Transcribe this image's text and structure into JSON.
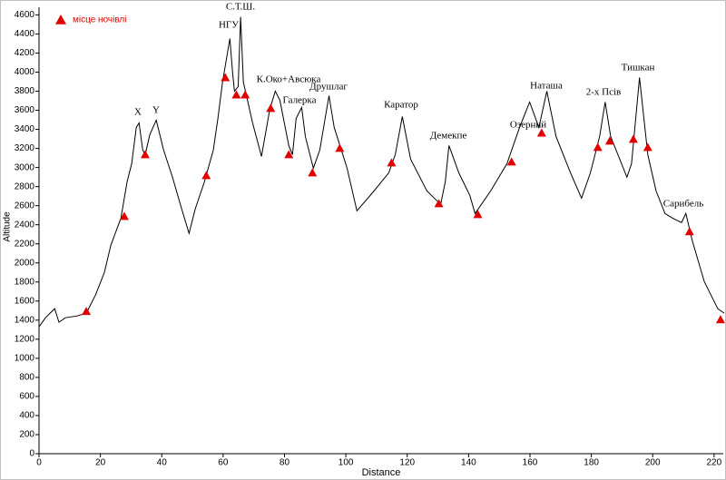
{
  "chart_data": {
    "type": "line",
    "xlabel": "Distance",
    "ylabel": "Altitude",
    "xlim": [
      0,
      223
    ],
    "xticks": [
      0,
      20,
      40,
      60,
      80,
      100,
      120,
      140,
      160,
      180,
      200,
      220
    ],
    "ylim": [
      0,
      4680
    ],
    "yticks": [
      0,
      200,
      400,
      600,
      800,
      1000,
      1200,
      1400,
      1600,
      1800,
      2000,
      2200,
      2400,
      2600,
      2800,
      3000,
      3200,
      3400,
      3600,
      3800,
      4000,
      4200,
      4400,
      4600
    ],
    "legend": "top-left",
    "series": [
      {
        "color": "#000000",
        "x": [
          0,
          2.1,
          3.6,
          5.1,
          6.5,
          8.6,
          12.4,
          15.4,
          18.4,
          21.3,
          23.4,
          26.7,
          28.7,
          30.2,
          31.7,
          32.6,
          33.8,
          34.6,
          36.1,
          38.2,
          40.6,
          43.5,
          46.5,
          48.9,
          50.9,
          53.9,
          56.8,
          58.3,
          59.8,
          61.3,
          62.2,
          63.1,
          63.7,
          64.9,
          65.7,
          66.6,
          69.6,
          72.5,
          75.2,
          77.0,
          78.5,
          81.4,
          82.6,
          83.8,
          85.6,
          86.8,
          89.4,
          91.5,
          94.5,
          96.2,
          100.4,
          103.6,
          108.7,
          114.0,
          116.1,
          118.4,
          121.1,
          126.4,
          130.9,
          132.4,
          133.6,
          136.8,
          140.4,
          142.1,
          147.2,
          152.5,
          156.6,
          159.9,
          162.9,
          165.5,
          168.5,
          173.2,
          176.8,
          179.7,
          182.7,
          184.5,
          186.3,
          191.6,
          193.1,
          195.7,
          198.4,
          201.1,
          204.0,
          206.4,
          209.4,
          210.8,
          212.9,
          216.8,
          221.2,
          223.3
        ],
        "values": [
          1330,
          1425,
          1473,
          1520,
          1378,
          1425,
          1444,
          1473,
          1663,
          1900,
          2185,
          2470,
          2850,
          3040,
          3420,
          3468,
          3183,
          3135,
          3344,
          3496,
          3183,
          2898,
          2565,
          2309,
          2565,
          2850,
          3183,
          3515,
          3895,
          4180,
          4351,
          3990,
          3800,
          3848,
          4579,
          3895,
          3468,
          3116,
          3610,
          3800,
          3705,
          3230,
          3135,
          3515,
          3629,
          3325,
          2993,
          3183,
          3753,
          3420,
          2993,
          2546,
          2736,
          2945,
          3135,
          3534,
          3088,
          2755,
          2613,
          2850,
          3230,
          2945,
          2708,
          2518,
          2755,
          3040,
          3420,
          3686,
          3420,
          3800,
          3325,
          2945,
          2679,
          2945,
          3325,
          3686,
          3325,
          2898,
          3040,
          3943,
          3135,
          2755,
          2518,
          2470,
          2423,
          2518,
          2233,
          1805,
          1520,
          1473
        ]
      },
      {
        "name": "місце ночівлі",
        "color": "#e00000",
        "x": [
          15.4,
          27.8,
          34.6,
          54.5,
          60.7,
          64.3,
          67.2,
          75.5,
          81.4,
          89.1,
          98.0,
          114.9,
          130.3,
          143.0,
          154.0,
          163.8,
          182.1,
          186.0,
          193.7,
          198.4,
          212.0,
          222.1
        ],
        "values": [
          1492,
          2489,
          3135,
          2917,
          3943,
          3762,
          3762,
          3620,
          3135,
          2945,
          3202,
          3050,
          2622,
          2508,
          3059,
          3363,
          3211,
          3278,
          3297,
          3211,
          2328,
          1406
        ]
      }
    ],
    "annotations": [
      "X",
      "Y",
      "НГУ",
      "С.Т.Ш.",
      "К.Око+Авсюка",
      "Галерка",
      "Друшлаг",
      "Каратор",
      "Демекпе",
      "Озерний",
      "Наташа",
      "2-х Псів",
      "Тишкан",
      "Сарибель"
    ]
  }
}
